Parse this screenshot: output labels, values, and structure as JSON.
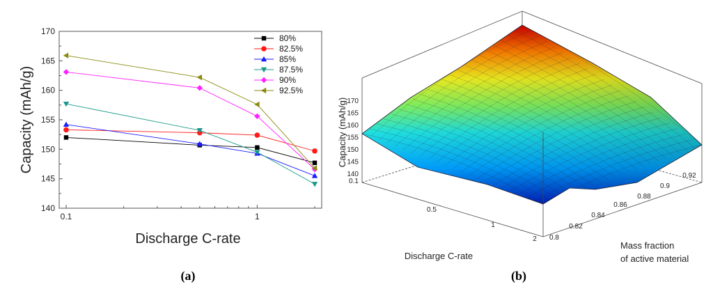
{
  "chart_data": [
    {
      "type": "line",
      "panel_label": "(a)",
      "xscale": "log",
      "xlabel": "Discharge C-rate",
      "ylabel": "Capacity (mAh/g)",
      "ylim": [
        140,
        170
      ],
      "xlim": [
        0.1,
        2
      ],
      "x": [
        0.1,
        0.5,
        1,
        2
      ],
      "xticks": [
        0.1,
        1
      ],
      "xtick_labels": [
        "0.1",
        "1"
      ],
      "yticks": [
        140,
        145,
        150,
        155,
        160,
        165,
        170
      ],
      "legend_position": "top-right",
      "series": [
        {
          "name": "80%",
          "marker": "square",
          "color": "#000000",
          "values": [
            152.0,
            150.7,
            150.3,
            147.7
          ]
        },
        {
          "name": "82.5%",
          "marker": "circle",
          "color": "#ff1a1a",
          "values": [
            153.3,
            152.8,
            152.4,
            149.7
          ]
        },
        {
          "name": "85%",
          "marker": "triangle-up",
          "color": "#1a1aff",
          "values": [
            154.2,
            150.9,
            149.3,
            145.5
          ]
        },
        {
          "name": "87.5%",
          "marker": "triangle-down",
          "color": "#1a9a8a",
          "values": [
            157.7,
            153.2,
            149.5,
            144.1
          ]
        },
        {
          "name": "90%",
          "marker": "diamond",
          "color": "#ff22ff",
          "values": [
            163.1,
            160.4,
            155.6,
            146.6
          ]
        },
        {
          "name": "92.5%",
          "marker": "triangle-left",
          "color": "#8a8a10",
          "values": [
            165.9,
            162.2,
            157.6,
            146.8
          ]
        }
      ]
    },
    {
      "type": "surface",
      "panel_label": "(b)",
      "xlabel": "Discharge C-rate",
      "ylabel_line1": "Mass fraction",
      "ylabel_line2": "of active material",
      "zlabel": "Capacity (mAh/g)",
      "x_ticks": [
        "0.1",
        "0.5",
        "1",
        "2"
      ],
      "y_ticks": [
        "0.8",
        "0.82",
        "0.84",
        "0.86",
        "0.88",
        "0.9",
        "0.92"
      ],
      "z_ticks": [
        "140",
        "145",
        "150",
        "155",
        "160",
        "165",
        "170"
      ],
      "zlim": [
        140,
        170
      ],
      "colormap": "jet"
    }
  ]
}
